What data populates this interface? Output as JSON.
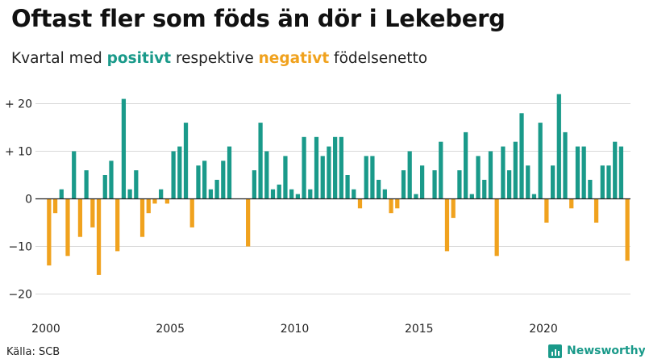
{
  "header": {
    "title": "Oftast fler som föds än dör i Lekeberg",
    "subtitle_pre": "Kvartal med ",
    "subtitle_pos": "positivt",
    "subtitle_mid": " respektive ",
    "subtitle_neg": "negativt",
    "subtitle_post": " födelsenetto"
  },
  "footer": {
    "source": "Källa: SCB",
    "brand": "Newsworthy"
  },
  "colors": {
    "positive": "#1a9a8a",
    "negative": "#f0a21e",
    "grid": "#d9d9d9",
    "baseline": "#222222"
  },
  "chart_data": {
    "type": "bar",
    "title": "Oftast fler som föds än dör i Lekeberg",
    "subtitle": "Kvartal med positivt respektive negativt födelsenetto",
    "xlabel": "",
    "ylabel": "",
    "ylim": [
      -22,
      23
    ],
    "grid": true,
    "start_year": 2000,
    "periods_per_year": 4,
    "y_ticks": [
      {
        "value": 20,
        "label": "+ 20"
      },
      {
        "value": 10,
        "label": "+ 10"
      },
      {
        "value": 0,
        "label": "0"
      },
      {
        "value": -10,
        "label": "−10"
      },
      {
        "value": -20,
        "label": "−20"
      }
    ],
    "x_ticks": [
      {
        "index": 0,
        "label": "2000"
      },
      {
        "index": 20,
        "label": "2005"
      },
      {
        "index": 40,
        "label": "2010"
      },
      {
        "index": 60,
        "label": "2015"
      },
      {
        "index": 80,
        "label": "2020"
      }
    ],
    "values": [
      -14,
      -3,
      2,
      -12,
      10,
      -8,
      6,
      -6,
      -16,
      5,
      8,
      -11,
      21,
      2,
      6,
      -8,
      -3,
      -1,
      2,
      -1,
      10,
      11,
      16,
      -6,
      7,
      8,
      2,
      4,
      8,
      11,
      0,
      0,
      -10,
      6,
      16,
      10,
      2,
      3,
      9,
      2,
      1,
      13,
      2,
      13,
      9,
      11,
      13,
      13,
      5,
      2,
      -2,
      9,
      9,
      4,
      2,
      -3,
      -2,
      6,
      10,
      1,
      7,
      0,
      6,
      12,
      -11,
      -4,
      6,
      14,
      1,
      9,
      4,
      10,
      -12,
      11,
      6,
      12,
      18,
      7,
      1,
      16,
      -5,
      7,
      22,
      14,
      -2,
      11,
      11,
      4,
      -5,
      7,
      7,
      12,
      11,
      -13
    ]
  }
}
